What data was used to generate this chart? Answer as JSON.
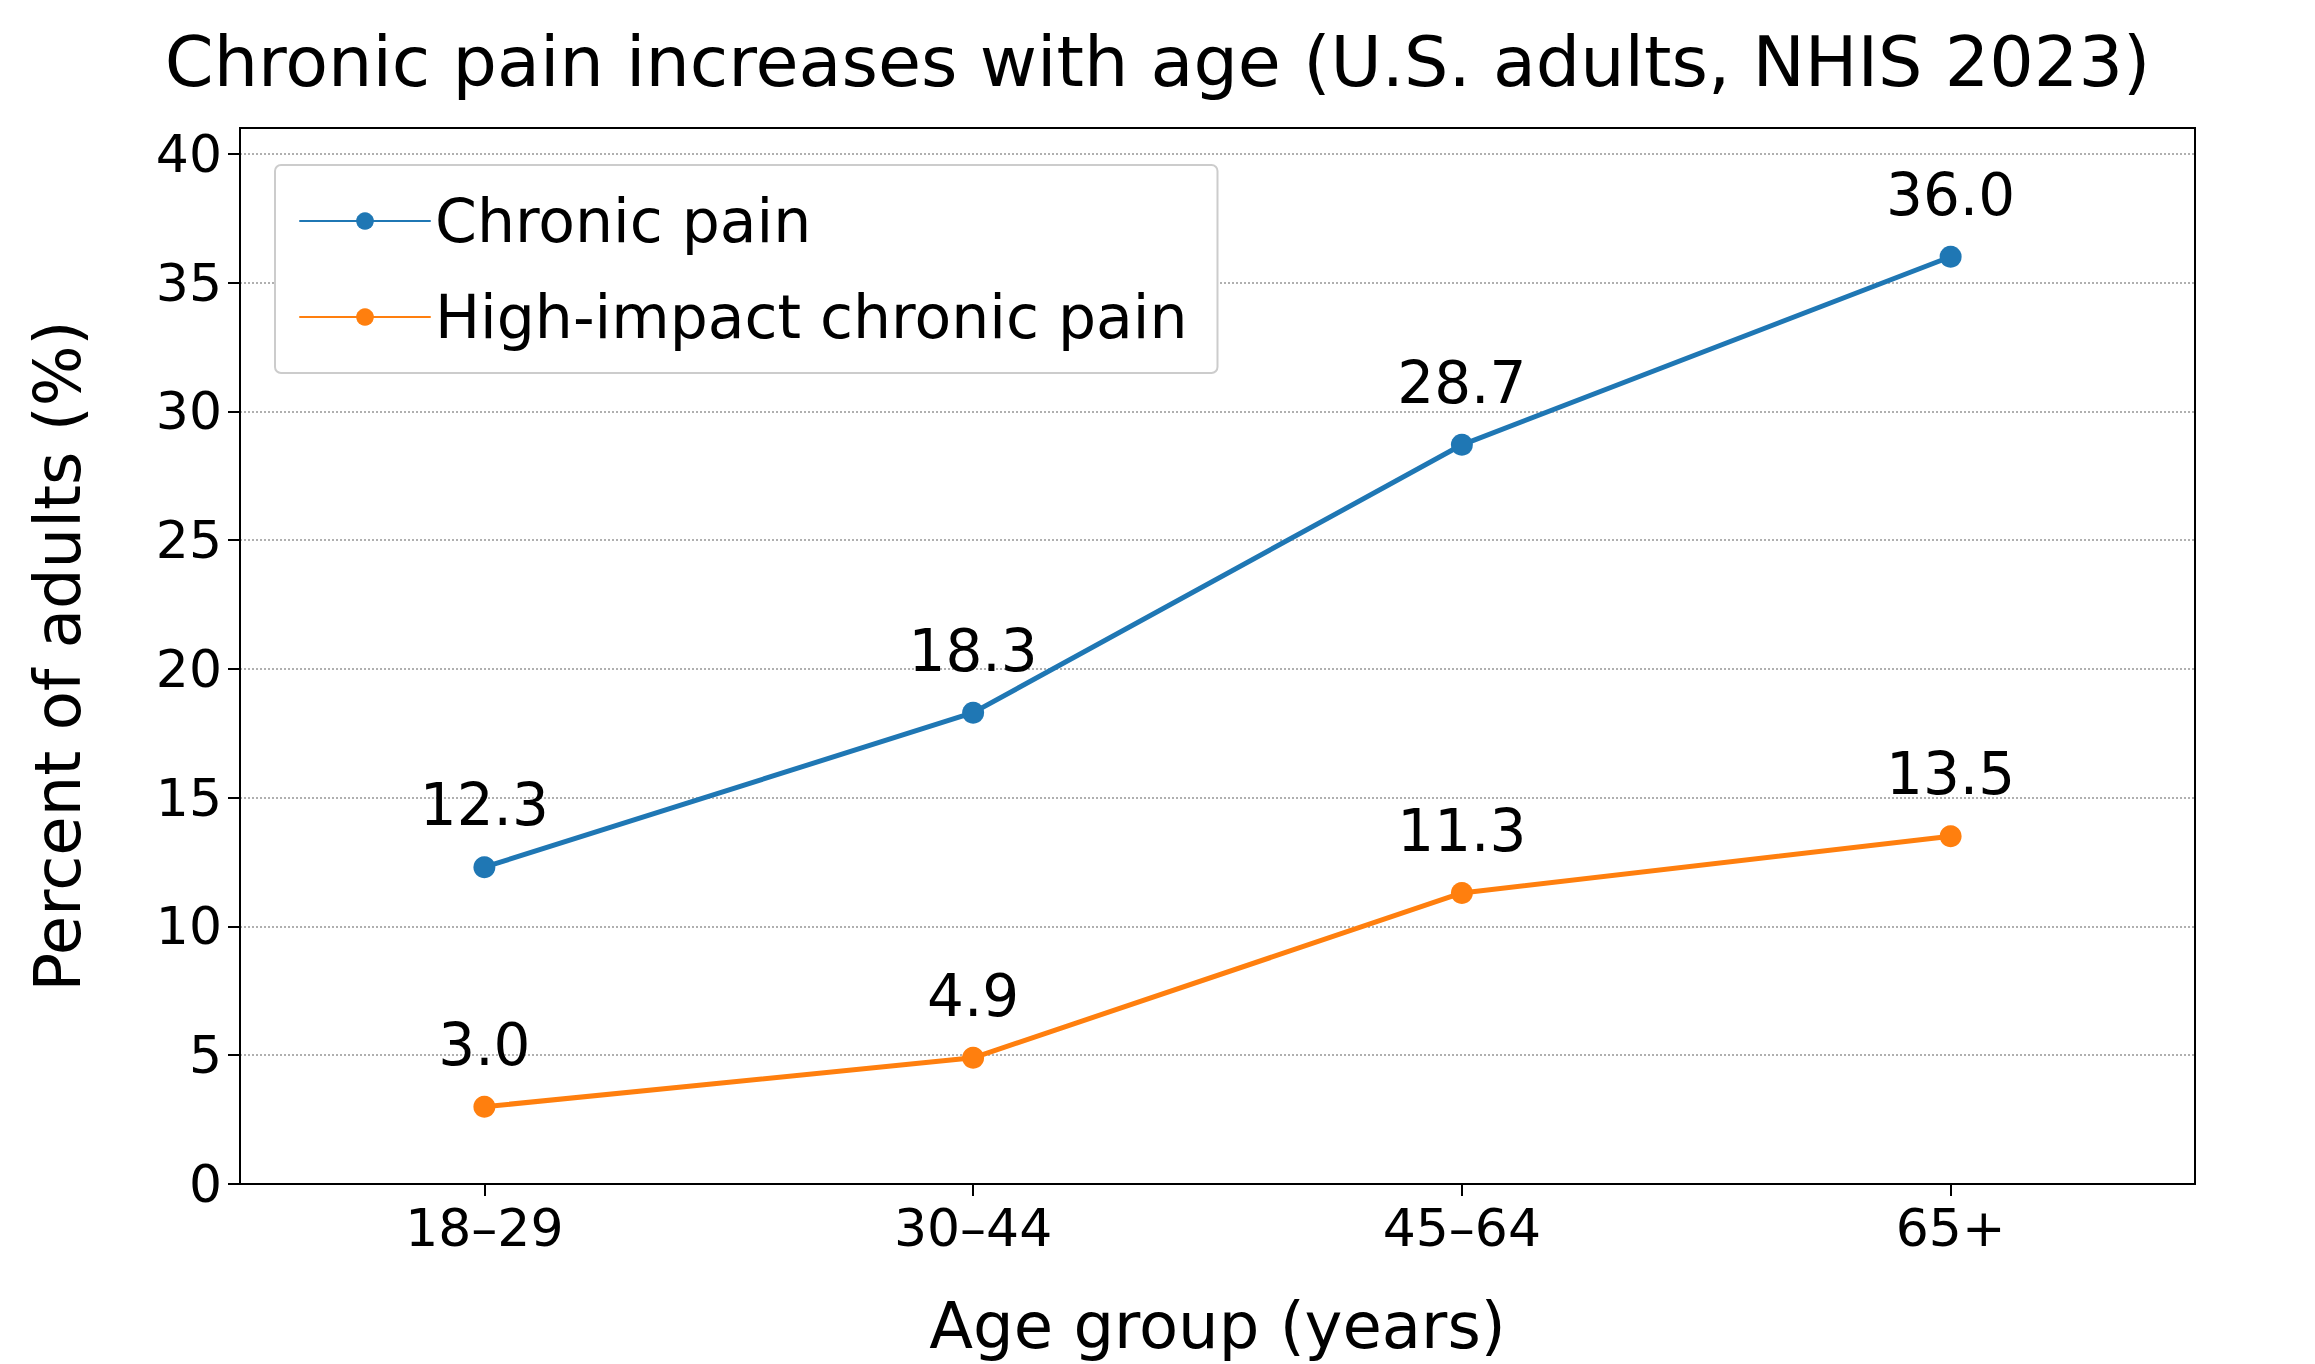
{
  "chart_data": {
    "type": "line",
    "title": "Chronic pain increases with age (U.S. adults, NHIS 2023)",
    "xlabel": "Age group (years)",
    "ylabel": "Percent of adults (%)",
    "categories": [
      "18–29",
      "30–44",
      "45–64",
      "65+"
    ],
    "series": [
      {
        "name": "Chronic pain",
        "color": "#1f77b4",
        "values": [
          12.3,
          18.3,
          28.7,
          36.0
        ],
        "value_labels": [
          "12.3",
          "18.3",
          "28.7",
          "36.0"
        ]
      },
      {
        "name": "High-impact chronic pain",
        "color": "#ff7f0e",
        "values": [
          3.0,
          4.9,
          11.3,
          13.5
        ],
        "value_labels": [
          "3.0",
          "4.9",
          "11.3",
          "13.5"
        ]
      }
    ],
    "ylim": [
      0,
      41
    ],
    "yticks": [
      0,
      5,
      10,
      15,
      20,
      25,
      30,
      35,
      40
    ],
    "grid": "y",
    "legend": "top left",
    "marker": "circle",
    "line_style": "solid"
  }
}
